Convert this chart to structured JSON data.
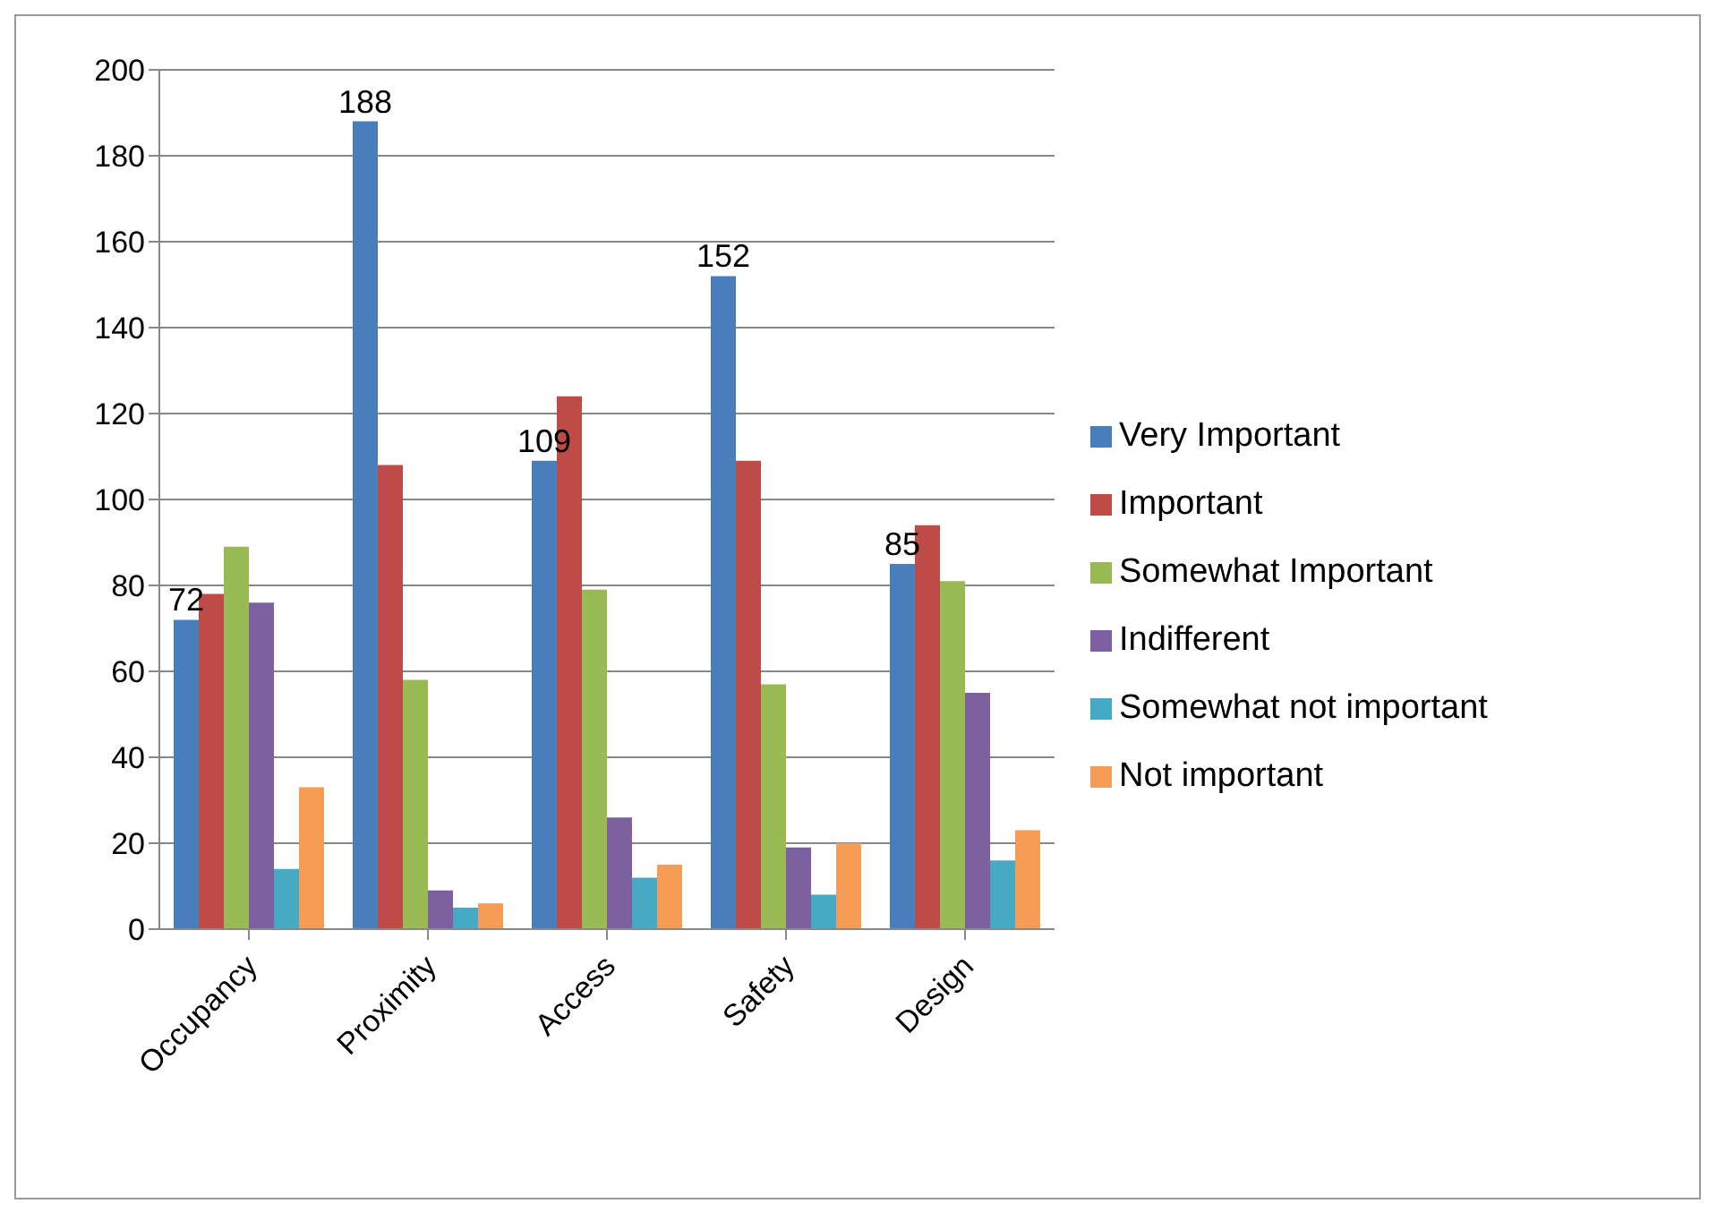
{
  "chart_data": {
    "type": "bar",
    "categories": [
      "Occupancy",
      "Proximity",
      "Access",
      "Safety",
      "Design"
    ],
    "series": [
      {
        "name": "Very Important",
        "color": "#4a7ebb",
        "values": [
          72,
          188,
          109,
          152,
          85
        ],
        "value_labels": [
          "72",
          "188",
          "109",
          "152",
          "85"
        ]
      },
      {
        "name": "Important",
        "color": "#be4b48",
        "values": [
          78,
          108,
          124,
          109,
          94
        ]
      },
      {
        "name": "Somewhat Important",
        "color": "#98b954",
        "values": [
          89,
          58,
          79,
          57,
          81
        ]
      },
      {
        "name": "Indifferent",
        "color": "#7d60a0",
        "values": [
          76,
          9,
          26,
          19,
          55
        ]
      },
      {
        "name": "Somewhat not important",
        "color": "#46aac5",
        "values": [
          14,
          5,
          12,
          8,
          16
        ]
      },
      {
        "name": "Not important",
        "color": "#f59d56",
        "values": [
          33,
          6,
          15,
          20,
          23
        ]
      }
    ],
    "ylim": [
      0,
      200
    ],
    "yticks": [
      0,
      20,
      40,
      60,
      80,
      100,
      120,
      140,
      160,
      180,
      200
    ],
    "grid": "y",
    "legend": "right"
  }
}
